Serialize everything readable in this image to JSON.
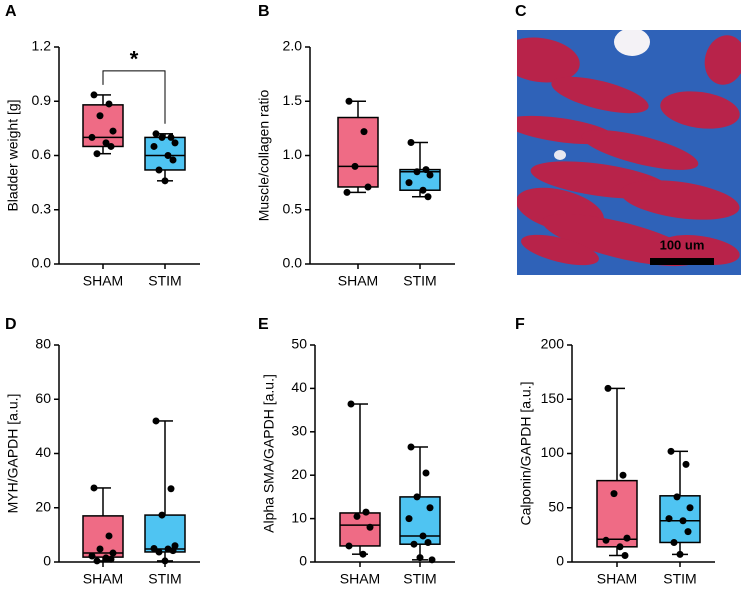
{
  "chart_data": [
    {
      "type": "box",
      "panel": "A",
      "ylabel": "Bladder weight [g]",
      "categories": [
        "SHAM",
        "STIM"
      ],
      "colors": [
        "#ef6b85",
        "#4fc4f2"
      ],
      "ylim": [
        0,
        1.2
      ],
      "yticks": [
        {
          "value": 0,
          "label": "0.0"
        },
        0.3,
        0.6,
        0.9,
        1.2
      ],
      "annotation": "*",
      "boxes": [
        {
          "min": 0.61,
          "q1": 0.65,
          "median": 0.7,
          "q3": 0.88,
          "max": 0.935,
          "points": [
            0.935,
            0.885,
            0.82,
            0.735,
            0.7,
            0.67,
            0.65,
            0.61
          ]
        },
        {
          "min": 0.46,
          "q1": 0.52,
          "median": 0.6,
          "q3": 0.7,
          "max": 0.72,
          "points": [
            0.72,
            0.7,
            0.7,
            0.67,
            0.65,
            0.6,
            0.575,
            0.52,
            0.46
          ]
        }
      ]
    },
    {
      "type": "box",
      "panel": "B",
      "ylabel": "Muscle/collagen ratio",
      "categories": [
        "SHAM",
        "STIM"
      ],
      "colors": [
        "#ef6b85",
        "#4fc4f2"
      ],
      "ylim": [
        0,
        2.0
      ],
      "yticks": [
        {
          "value": 0,
          "label": "0.0"
        },
        0.5,
        {
          "value": 1,
          "label": "1.0"
        },
        1.5,
        {
          "value": 2,
          "label": "2.0"
        }
      ],
      "boxes": [
        {
          "min": 0.66,
          "q1": 0.71,
          "median": 0.9,
          "q3": 1.35,
          "max": 1.5,
          "points": [
            1.5,
            1.22,
            0.9,
            0.71,
            0.66
          ]
        },
        {
          "min": 0.62,
          "q1": 0.68,
          "median": 0.85,
          "q3": 0.87,
          "max": 1.12,
          "points": [
            1.12,
            0.87,
            0.85,
            0.82,
            0.75,
            0.68,
            0.62
          ]
        }
      ]
    },
    {
      "type": "image",
      "panel": "C",
      "scale_label": "100 um"
    },
    {
      "type": "box",
      "panel": "D",
      "ylabel": "MYH/GAPDH [a.u.]",
      "categories": [
        "SHAM",
        "STIM"
      ],
      "colors": [
        "#ef6b85",
        "#4fc4f2"
      ],
      "ylim": [
        0,
        80
      ],
      "yticks": [
        0,
        20,
        40,
        60,
        80
      ],
      "boxes": [
        {
          "min": 0.4,
          "q1": 1.8,
          "median": 3.3,
          "q3": 17,
          "max": 27.3,
          "points": [
            27.3,
            9.6,
            4.8,
            3.3,
            2.2,
            1.5,
            1.0,
            0.4
          ]
        },
        {
          "min": 0.4,
          "q1": 3.7,
          "median": 4.8,
          "q3": 17.3,
          "max": 52,
          "points": [
            52,
            27,
            17.3,
            6,
            5,
            4.8,
            4.2,
            3.7,
            0.4
          ]
        }
      ]
    },
    {
      "type": "box",
      "panel": "E",
      "ylabel": "Alpha SMA/GAPDH [a.u.]",
      "categories": [
        "SHAM",
        "STIM"
      ],
      "colors": [
        "#ef6b85",
        "#4fc4f2"
      ],
      "ylim": [
        0,
        50
      ],
      "yticks": [
        0,
        10,
        20,
        30,
        40,
        50
      ],
      "boxes": [
        {
          "min": 1.8,
          "q1": 3.7,
          "median": 8.5,
          "q3": 11.3,
          "max": 36.4,
          "points": [
            36.4,
            11.5,
            10.5,
            8,
            3.7,
            1.8
          ]
        },
        {
          "min": 0.5,
          "q1": 4.1,
          "median": 6,
          "q3": 15,
          "max": 26.5,
          "points": [
            26.5,
            20.5,
            15,
            12.5,
            10,
            6,
            4.5,
            4.1,
            1,
            0.5
          ]
        }
      ]
    },
    {
      "type": "box",
      "panel": "F",
      "ylabel": "Calponin/GAPDH [a.u.]",
      "categories": [
        "SHAM",
        "STIM"
      ],
      "colors": [
        "#ef6b85",
        "#4fc4f2"
      ],
      "ylim": [
        0,
        200
      ],
      "yticks": [
        0,
        50,
        100,
        150,
        200
      ],
      "boxes": [
        {
          "min": 6,
          "q1": 14,
          "median": 21,
          "q3": 75,
          "max": 160,
          "points": [
            160,
            80,
            63,
            22,
            20,
            14,
            6
          ]
        },
        {
          "min": 7,
          "q1": 18,
          "median": 38,
          "q3": 61,
          "max": 102,
          "points": [
            102,
            90,
            60,
            50,
            40,
            38,
            28,
            18,
            7
          ]
        }
      ]
    }
  ]
}
